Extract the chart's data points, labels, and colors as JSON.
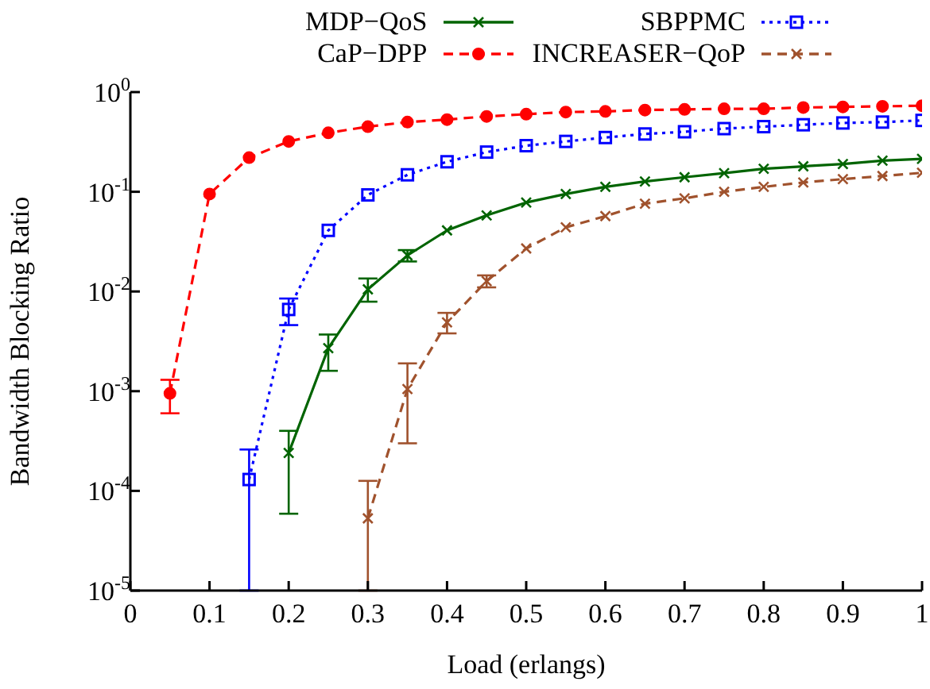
{
  "chart_data": {
    "type": "line",
    "xlabel": "Load (erlangs)",
    "ylabel": "Bandwidth Blocking Ratio",
    "log": "y",
    "legend": "top",
    "grid": false,
    "xlim": [
      0,
      1
    ],
    "xticks": [
      0,
      0.1,
      0.2,
      0.3,
      0.4,
      0.5,
      0.6,
      0.7,
      0.8,
      0.9,
      1
    ],
    "ylim": [
      1e-05,
      1
    ],
    "yticks": [
      {
        "value": 1e-05,
        "label": "10$^{-5}$"
      },
      {
        "value": 0.0001,
        "label": "10$^{-4}$"
      },
      {
        "value": 0.001,
        "label": "10$^{-3}$"
      },
      {
        "value": 0.01,
        "label": "10$^{-2}$"
      },
      {
        "value": 0.1,
        "label": "10$^{-1}$"
      },
      {
        "value": 1,
        "label": "10$^{0}$"
      }
    ],
    "series": [
      {
        "name": "MDP−QoS",
        "color": "#006400",
        "marker": "cross",
        "line_style": "solid",
        "x": [
          0.2,
          0.25,
          0.3,
          0.35,
          0.4,
          0.45,
          0.5,
          0.55,
          0.6,
          0.65,
          0.7,
          0.75,
          0.8,
          0.85,
          0.9,
          0.95,
          1
        ],
        "values": [
          0.00024,
          0.0027,
          0.0105,
          0.023,
          0.041,
          0.058,
          0.078,
          0.095,
          0.112,
          0.127,
          0.14,
          0.154,
          0.17,
          0.18,
          0.19,
          0.205,
          0.214
        ],
        "errors": [
          [
            5.9e-05,
            0.0004
          ],
          [
            0.0016,
            0.0037
          ],
          [
            0.0079,
            0.0135
          ],
          [
            0.02,
            0.026
          ],
          null,
          null,
          null,
          null,
          null,
          null,
          null,
          null,
          null,
          null,
          null,
          null,
          null
        ]
      },
      {
        "name": "CaP−DPP",
        "color": "#ff0000",
        "marker": "circle",
        "line_style": "dashed",
        "x": [
          0.05,
          0.1,
          0.15,
          0.2,
          0.25,
          0.3,
          0.35,
          0.4,
          0.45,
          0.5,
          0.55,
          0.6,
          0.65,
          0.7,
          0.75,
          0.8,
          0.85,
          0.9,
          0.95,
          1
        ],
        "values": [
          0.00095,
          0.095,
          0.22,
          0.32,
          0.39,
          0.45,
          0.5,
          0.53,
          0.57,
          0.6,
          0.63,
          0.64,
          0.66,
          0.67,
          0.68,
          0.68,
          0.7,
          0.71,
          0.72,
          0.73
        ],
        "errors": [
          [
            0.0006,
            0.0013
          ],
          null,
          null,
          null,
          null,
          null,
          null,
          null,
          null,
          null,
          null,
          null,
          null,
          null,
          null,
          null,
          null,
          null,
          null,
          null
        ]
      },
      {
        "name": "SBPPMC",
        "color": "#0000ff",
        "marker": "square",
        "line_style": "dotted",
        "x": [
          0.15,
          0.2,
          0.25,
          0.3,
          0.35,
          0.4,
          0.45,
          0.5,
          0.55,
          0.6,
          0.65,
          0.7,
          0.75,
          0.8,
          0.85,
          0.9,
          0.95,
          1
        ],
        "values": [
          0.00013,
          0.0066,
          0.041,
          0.093,
          0.148,
          0.2,
          0.25,
          0.29,
          0.32,
          0.35,
          0.38,
          0.4,
          0.43,
          0.45,
          0.47,
          0.49,
          0.5,
          0.52
        ],
        "errors": [
          [
            1e-05,
            0.00026
          ],
          [
            0.0046,
            0.0085
          ],
          null,
          null,
          null,
          null,
          null,
          null,
          null,
          null,
          null,
          null,
          null,
          null,
          null,
          null,
          null,
          null
        ]
      },
      {
        "name": "INCREASER−QoP",
        "color": "#a0522d",
        "marker": "cross",
        "line_style": "dashed",
        "x": [
          0.3,
          0.35,
          0.4,
          0.45,
          0.5,
          0.55,
          0.6,
          0.65,
          0.7,
          0.75,
          0.8,
          0.85,
          0.9,
          0.95,
          1
        ],
        "values": [
          5.3e-05,
          0.00105,
          0.0049,
          0.0127,
          0.027,
          0.044,
          0.057,
          0.076,
          0.086,
          0.1,
          0.112,
          0.124,
          0.134,
          0.144,
          0.155
        ],
        "errors": [
          [
            1e-05,
            0.000126
          ],
          [
            0.0003,
            0.0019
          ],
          [
            0.0038,
            0.0061
          ],
          [
            0.011,
            0.0145
          ],
          null,
          null,
          null,
          null,
          null,
          null,
          null,
          null,
          null,
          null,
          null
        ]
      }
    ]
  }
}
